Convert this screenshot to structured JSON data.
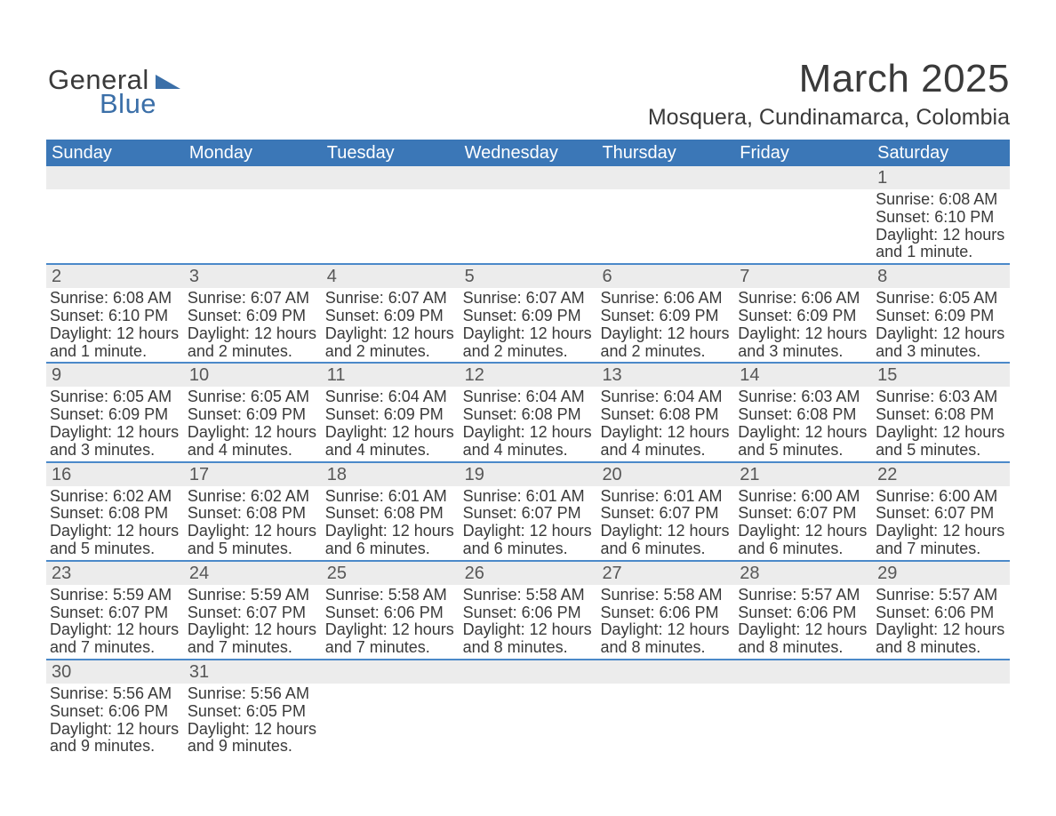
{
  "brand": {
    "top": "General",
    "bottom": "Blue"
  },
  "title": "March 2025",
  "location": "Mosquera, Cundinamarca, Colombia",
  "day_headers": [
    "Sunday",
    "Monday",
    "Tuesday",
    "Wednesday",
    "Thursday",
    "Friday",
    "Saturday"
  ],
  "colors": {
    "header_blue": "#3b77b7",
    "row_border": "#4b89c9",
    "grey_bg": "#ececec",
    "text": "#3a3a3a",
    "logo_blue": "#3b6fa8"
  },
  "weeks": [
    [
      {
        "num": "",
        "text": ""
      },
      {
        "num": "",
        "text": ""
      },
      {
        "num": "",
        "text": ""
      },
      {
        "num": "",
        "text": ""
      },
      {
        "num": "",
        "text": ""
      },
      {
        "num": "",
        "text": ""
      },
      {
        "num": "1",
        "text": "Sunrise: 6:08 AM\nSunset: 6:10 PM\nDaylight: 12 hours and 1 minute."
      }
    ],
    [
      {
        "num": "2",
        "text": "Sunrise: 6:08 AM\nSunset: 6:10 PM\nDaylight: 12 hours and 1 minute."
      },
      {
        "num": "3",
        "text": "Sunrise: 6:07 AM\nSunset: 6:09 PM\nDaylight: 12 hours and 2 minutes."
      },
      {
        "num": "4",
        "text": "Sunrise: 6:07 AM\nSunset: 6:09 PM\nDaylight: 12 hours and 2 minutes."
      },
      {
        "num": "5",
        "text": "Sunrise: 6:07 AM\nSunset: 6:09 PM\nDaylight: 12 hours and 2 minutes."
      },
      {
        "num": "6",
        "text": "Sunrise: 6:06 AM\nSunset: 6:09 PM\nDaylight: 12 hours and 2 minutes."
      },
      {
        "num": "7",
        "text": "Sunrise: 6:06 AM\nSunset: 6:09 PM\nDaylight: 12 hours and 3 minutes."
      },
      {
        "num": "8",
        "text": "Sunrise: 6:05 AM\nSunset: 6:09 PM\nDaylight: 12 hours and 3 minutes."
      }
    ],
    [
      {
        "num": "9",
        "text": "Sunrise: 6:05 AM\nSunset: 6:09 PM\nDaylight: 12 hours and 3 minutes."
      },
      {
        "num": "10",
        "text": "Sunrise: 6:05 AM\nSunset: 6:09 PM\nDaylight: 12 hours and 4 minutes."
      },
      {
        "num": "11",
        "text": "Sunrise: 6:04 AM\nSunset: 6:09 PM\nDaylight: 12 hours and 4 minutes."
      },
      {
        "num": "12",
        "text": "Sunrise: 6:04 AM\nSunset: 6:08 PM\nDaylight: 12 hours and 4 minutes."
      },
      {
        "num": "13",
        "text": "Sunrise: 6:04 AM\nSunset: 6:08 PM\nDaylight: 12 hours and 4 minutes."
      },
      {
        "num": "14",
        "text": "Sunrise: 6:03 AM\nSunset: 6:08 PM\nDaylight: 12 hours and 5 minutes."
      },
      {
        "num": "15",
        "text": "Sunrise: 6:03 AM\nSunset: 6:08 PM\nDaylight: 12 hours and 5 minutes."
      }
    ],
    [
      {
        "num": "16",
        "text": "Sunrise: 6:02 AM\nSunset: 6:08 PM\nDaylight: 12 hours and 5 minutes."
      },
      {
        "num": "17",
        "text": "Sunrise: 6:02 AM\nSunset: 6:08 PM\nDaylight: 12 hours and 5 minutes."
      },
      {
        "num": "18",
        "text": "Sunrise: 6:01 AM\nSunset: 6:08 PM\nDaylight: 12 hours and 6 minutes."
      },
      {
        "num": "19",
        "text": "Sunrise: 6:01 AM\nSunset: 6:07 PM\nDaylight: 12 hours and 6 minutes."
      },
      {
        "num": "20",
        "text": "Sunrise: 6:01 AM\nSunset: 6:07 PM\nDaylight: 12 hours and 6 minutes."
      },
      {
        "num": "21",
        "text": "Sunrise: 6:00 AM\nSunset: 6:07 PM\nDaylight: 12 hours and 6 minutes."
      },
      {
        "num": "22",
        "text": "Sunrise: 6:00 AM\nSunset: 6:07 PM\nDaylight: 12 hours and 7 minutes."
      }
    ],
    [
      {
        "num": "23",
        "text": "Sunrise: 5:59 AM\nSunset: 6:07 PM\nDaylight: 12 hours and 7 minutes."
      },
      {
        "num": "24",
        "text": "Sunrise: 5:59 AM\nSunset: 6:07 PM\nDaylight: 12 hours and 7 minutes."
      },
      {
        "num": "25",
        "text": "Sunrise: 5:58 AM\nSunset: 6:06 PM\nDaylight: 12 hours and 7 minutes."
      },
      {
        "num": "26",
        "text": "Sunrise: 5:58 AM\nSunset: 6:06 PM\nDaylight: 12 hours and 8 minutes."
      },
      {
        "num": "27",
        "text": "Sunrise: 5:58 AM\nSunset: 6:06 PM\nDaylight: 12 hours and 8 minutes."
      },
      {
        "num": "28",
        "text": "Sunrise: 5:57 AM\nSunset: 6:06 PM\nDaylight: 12 hours and 8 minutes."
      },
      {
        "num": "29",
        "text": "Sunrise: 5:57 AM\nSunset: 6:06 PM\nDaylight: 12 hours and 8 minutes."
      }
    ],
    [
      {
        "num": "30",
        "text": "Sunrise: 5:56 AM\nSunset: 6:06 PM\nDaylight: 12 hours and 9 minutes."
      },
      {
        "num": "31",
        "text": "Sunrise: 5:56 AM\nSunset: 6:05 PM\nDaylight: 12 hours and 9 minutes."
      },
      {
        "num": "",
        "text": ""
      },
      {
        "num": "",
        "text": ""
      },
      {
        "num": "",
        "text": ""
      },
      {
        "num": "",
        "text": ""
      },
      {
        "num": "",
        "text": ""
      }
    ]
  ]
}
